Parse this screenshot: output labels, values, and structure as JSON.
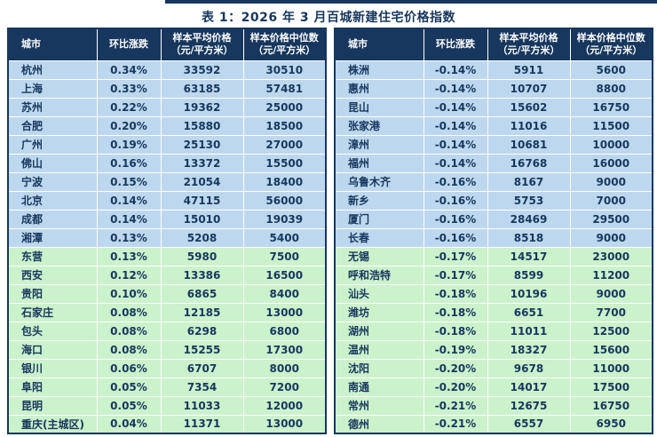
{
  "title": "表 1：2026 年 3 月百城新建住宅价格指数",
  "columns": [
    {
      "lines": [
        "城市"
      ]
    },
    {
      "lines": [
        "环比涨跌"
      ]
    },
    {
      "lines": [
        "样本平均价格",
        "（元/平方米）"
      ]
    },
    {
      "lines": [
        "样本价格中位数",
        "（元/平方米）"
      ]
    }
  ],
  "colors": {
    "header_bg": "#17375E",
    "row_blue": "#BDD7EE",
    "row_green": "#CBF2CB",
    "text_navy": "#17375E",
    "grid_line": "#FFFFFF"
  },
  "blue_rows_per_table": 10,
  "left_table": {
    "rows": [
      {
        "city": "杭州",
        "change": "0.34%",
        "avg": "33592",
        "median": "30510"
      },
      {
        "city": "上海",
        "change": "0.33%",
        "avg": "63185",
        "median": "57481"
      },
      {
        "city": "苏州",
        "change": "0.22%",
        "avg": "19362",
        "median": "25000"
      },
      {
        "city": "合肥",
        "change": "0.20%",
        "avg": "15880",
        "median": "18500"
      },
      {
        "city": "广州",
        "change": "0.19%",
        "avg": "25130",
        "median": "27000"
      },
      {
        "city": "佛山",
        "change": "0.16%",
        "avg": "13372",
        "median": "15500"
      },
      {
        "city": "宁波",
        "change": "0.15%",
        "avg": "21054",
        "median": "18400"
      },
      {
        "city": "北京",
        "change": "0.14%",
        "avg": "47115",
        "median": "56000"
      },
      {
        "city": "成都",
        "change": "0.14%",
        "avg": "15010",
        "median": "19039"
      },
      {
        "city": "湘潭",
        "change": "0.13%",
        "avg": "5208",
        "median": "5400"
      },
      {
        "city": "东营",
        "change": "0.13%",
        "avg": "5980",
        "median": "7500"
      },
      {
        "city": "西安",
        "change": "0.12%",
        "avg": "13386",
        "median": "16500"
      },
      {
        "city": "贵阳",
        "change": "0.10%",
        "avg": "6865",
        "median": "8400"
      },
      {
        "city": "石家庄",
        "change": "0.08%",
        "avg": "12185",
        "median": "13000"
      },
      {
        "city": "包头",
        "change": "0.08%",
        "avg": "6298",
        "median": "6800"
      },
      {
        "city": "海口",
        "change": "0.08%",
        "avg": "15255",
        "median": "17300"
      },
      {
        "city": "银川",
        "change": "0.06%",
        "avg": "6707",
        "median": "8000"
      },
      {
        "city": "阜阳",
        "change": "0.05%",
        "avg": "7354",
        "median": "7200"
      },
      {
        "city": "昆明",
        "change": "0.05%",
        "avg": "11033",
        "median": "12000"
      },
      {
        "city": "重庆(主城区)",
        "change": "0.04%",
        "avg": "11371",
        "median": "13000"
      }
    ]
  },
  "right_table": {
    "rows": [
      {
        "city": "株洲",
        "change": "-0.14%",
        "avg": "5911",
        "median": "5600"
      },
      {
        "city": "惠州",
        "change": "-0.14%",
        "avg": "10707",
        "median": "8800"
      },
      {
        "city": "昆山",
        "change": "-0.14%",
        "avg": "15602",
        "median": "16750"
      },
      {
        "city": "张家港",
        "change": "-0.14%",
        "avg": "11016",
        "median": "11500"
      },
      {
        "city": "漳州",
        "change": "-0.14%",
        "avg": "10681",
        "median": "10000"
      },
      {
        "city": "福州",
        "change": "-0.14%",
        "avg": "16768",
        "median": "16000"
      },
      {
        "city": "乌鲁木齐",
        "change": "-0.16%",
        "avg": "8167",
        "median": "9000"
      },
      {
        "city": "新乡",
        "change": "-0.16%",
        "avg": "5753",
        "median": "7000"
      },
      {
        "city": "厦门",
        "change": "-0.16%",
        "avg": "28469",
        "median": "29500"
      },
      {
        "city": "长春",
        "change": "-0.16%",
        "avg": "8518",
        "median": "9000"
      },
      {
        "city": "无锡",
        "change": "-0.17%",
        "avg": "14517",
        "median": "23000"
      },
      {
        "city": "呼和浩特",
        "change": "-0.17%",
        "avg": "8599",
        "median": "11200"
      },
      {
        "city": "汕头",
        "change": "-0.18%",
        "avg": "10196",
        "median": "9000"
      },
      {
        "city": "潍坊",
        "change": "-0.18%",
        "avg": "6651",
        "median": "7700"
      },
      {
        "city": "湖州",
        "change": "-0.18%",
        "avg": "11011",
        "median": "12500"
      },
      {
        "city": "温州",
        "change": "-0.19%",
        "avg": "18327",
        "median": "15600"
      },
      {
        "city": "沈阳",
        "change": "-0.20%",
        "avg": "9678",
        "median": "11000"
      },
      {
        "city": "南通",
        "change": "-0.20%",
        "avg": "14017",
        "median": "17500"
      },
      {
        "city": "常州",
        "change": "-0.21%",
        "avg": "12675",
        "median": "16750"
      },
      {
        "city": "德州",
        "change": "-0.21%",
        "avg": "6557",
        "median": "6950"
      }
    ]
  }
}
